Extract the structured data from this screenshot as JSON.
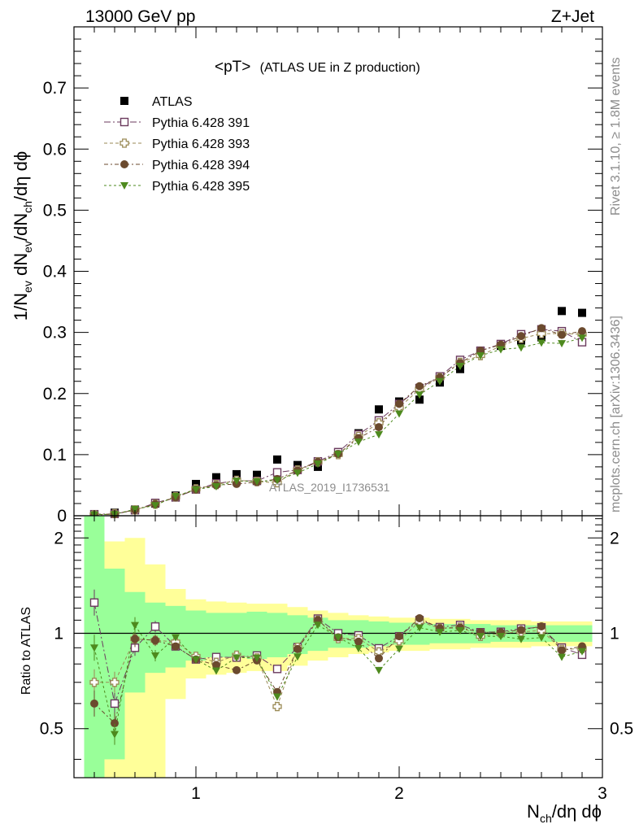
{
  "header": {
    "left": "13000 GeV pp",
    "right": "Z+Jet"
  },
  "side_labels": {
    "rivet": "Rivet 3.1.10, ≥ 1.8M events",
    "mcplots": "mcplots.cern.ch [arXiv:1306.3436]"
  },
  "chart_data": {
    "type": "scatter",
    "title": "<pT>",
    "subtitle": "(ATLAS UE in Z production)",
    "watermark": "ATLAS_2019_I1736531",
    "xlabel": "N_ch/dη dϕ",
    "ylabel": "1/N_ev dN_ev/dN_ch/dη dϕ",
    "xlim": [
      0.4,
      3.0
    ],
    "ylim": [
      0,
      0.8
    ],
    "x_ticks": [
      1,
      2,
      3
    ],
    "y_ticks": [
      0,
      0.1,
      0.2,
      0.3,
      0.4,
      0.5,
      0.6,
      0.7
    ],
    "y_tick_labels": [
      "0",
      "0.1",
      "0.2",
      "0.3",
      "0.4",
      "0.5",
      "0.6",
      "0.7"
    ],
    "legend_position": "top-left",
    "x": [
      0.5,
      0.6,
      0.7,
      0.8,
      0.9,
      1.0,
      1.1,
      1.2,
      1.3,
      1.4,
      1.5,
      1.6,
      1.7,
      1.8,
      1.9,
      2.0,
      2.1,
      2.2,
      2.3,
      2.4,
      2.5,
      2.6,
      2.7,
      2.8,
      2.9
    ],
    "series": [
      {
        "name": "ATLAS",
        "marker": "filled-square",
        "color": "#000000",
        "values": [
          0.002,
          0.005,
          0.01,
          0.02,
          0.033,
          0.052,
          0.063,
          0.068,
          0.067,
          0.092,
          0.083,
          0.08,
          0.104,
          0.135,
          0.174,
          0.187,
          0.19,
          0.218,
          0.24,
          0.268,
          0.278,
          0.287,
          0.292,
          0.335,
          0.332
        ]
      },
      {
        "name": "Pythia 6.428 391",
        "marker": "open-square",
        "color": "#6b3a5e",
        "values": [
          0.0025,
          0.003,
          0.009,
          0.021,
          0.03,
          0.043,
          0.053,
          0.057,
          0.057,
          0.071,
          0.075,
          0.089,
          0.104,
          0.133,
          0.156,
          0.183,
          0.209,
          0.228,
          0.255,
          0.27,
          0.281,
          0.297,
          0.305,
          0.302,
          0.284
        ]
      },
      {
        "name": "Pythia 6.428 393",
        "marker": "open-cross",
        "color": "#9a8a55",
        "values": [
          0.0014,
          0.0035,
          0.0096,
          0.019,
          0.031,
          0.044,
          0.051,
          0.058,
          0.056,
          0.054,
          0.075,
          0.088,
          0.1,
          0.13,
          0.152,
          0.177,
          0.207,
          0.226,
          0.251,
          0.262,
          0.278,
          0.29,
          0.298,
          0.298,
          0.297
        ]
      },
      {
        "name": "Pythia 6.428 394",
        "marker": "filled-circle",
        "color": "#6b4a2e",
        "values": [
          0.0012,
          0.0026,
          0.0096,
          0.019,
          0.03,
          0.043,
          0.05,
          0.052,
          0.055,
          0.06,
          0.074,
          0.088,
          0.101,
          0.127,
          0.145,
          0.183,
          0.212,
          0.226,
          0.25,
          0.27,
          0.28,
          0.294,
          0.307,
          0.296,
          0.302
        ]
      },
      {
        "name": "Pythia 6.428 395",
        "marker": "filled-triangle-down",
        "color": "#4e8a1e",
        "values": [
          0.0018,
          0.0024,
          0.0106,
          0.017,
          0.032,
          0.043,
          0.048,
          0.057,
          0.056,
          0.058,
          0.07,
          0.085,
          0.101,
          0.121,
          0.133,
          0.167,
          0.198,
          0.22,
          0.245,
          0.262,
          0.272,
          0.275,
          0.283,
          0.282,
          0.291
        ]
      }
    ],
    "ratio_panel": {
      "ylabel": "Ratio to ATLAS",
      "ylim": [
        0.35,
        2.35
      ],
      "y_ticks": [
        0.5,
        1,
        2
      ],
      "y_tick_labels": [
        "0.5",
        "1",
        "2"
      ],
      "green_band_half_width": [
        1.35,
        0.6,
        0.35,
        0.25,
        0.22,
        0.18,
        0.16,
        0.16,
        0.17,
        0.16,
        0.14,
        0.12,
        0.1,
        0.1,
        0.09,
        0.08,
        0.08,
        0.07,
        0.07,
        0.07,
        0.06,
        0.06,
        0.06,
        0.06,
        0.06
      ],
      "yellow_band_half_width": [
        1.35,
        0.95,
        1.0,
        0.65,
        0.38,
        0.28,
        0.26,
        0.25,
        0.24,
        0.24,
        0.21,
        0.18,
        0.16,
        0.14,
        0.13,
        0.12,
        0.12,
        0.11,
        0.11,
        0.1,
        0.1,
        0.1,
        0.09,
        0.09,
        0.09
      ]
    }
  }
}
